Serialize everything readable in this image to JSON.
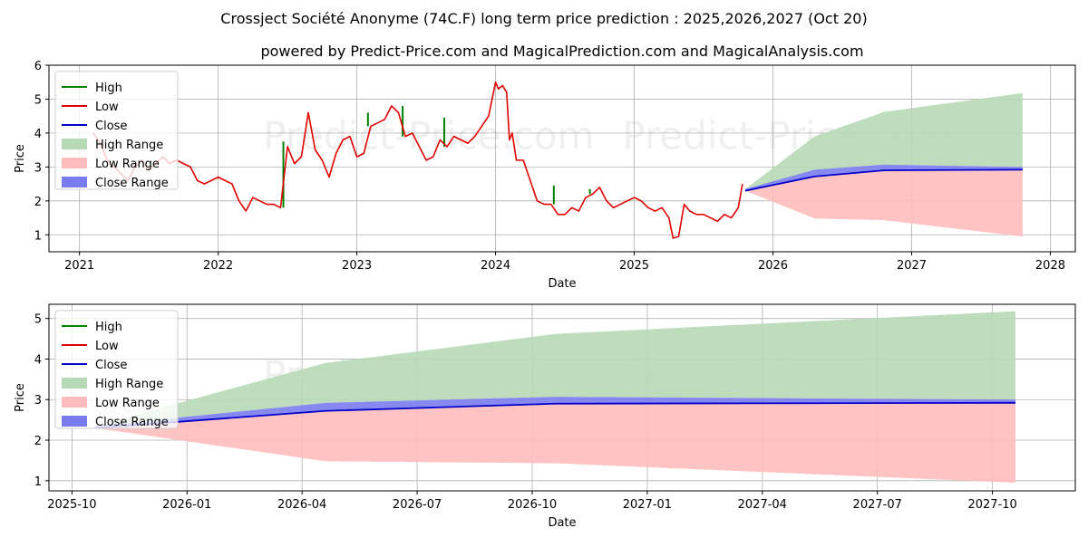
{
  "title": "Crossject Société Anonyme (74C.F) long term price prediction : 2025,2026,2027 (Oct 20)",
  "subtitle": "powered by Predict-Price.com and MagicalPrediction.com and MagicalAnalysis.com",
  "watermark": "Predict-Price.com",
  "colors": {
    "high": "#008000",
    "low": "#e00000",
    "close": "#0000cc",
    "high_range": "#b6d9b6",
    "low_range": "#ffbcbc",
    "close_range": "#7b7bf0"
  },
  "chart_data": [
    {
      "type": "line",
      "id": "top",
      "xlabel": "Date",
      "ylabel": "Price",
      "xlim": [
        2020.78,
        2028.18
      ],
      "ylim": [
        0.5,
        6.0
      ],
      "grid": true,
      "legend_position": "upper-left",
      "xticks": [
        {
          "v": 2021.0,
          "label": "2021"
        },
        {
          "v": 2022.0,
          "label": "2022"
        },
        {
          "v": 2023.0,
          "label": "2023"
        },
        {
          "v": 2024.0,
          "label": "2024"
        },
        {
          "v": 2025.0,
          "label": "2025"
        },
        {
          "v": 2026.0,
          "label": "2026"
        },
        {
          "v": 2027.0,
          "label": "2027"
        },
        {
          "v": 2028.0,
          "label": "2028"
        }
      ],
      "yticks": [
        {
          "v": 1,
          "label": "1"
        },
        {
          "v": 2,
          "label": "2"
        },
        {
          "v": 3,
          "label": "3"
        },
        {
          "v": 4,
          "label": "4"
        },
        {
          "v": 5,
          "label": "5"
        },
        {
          "v": 6,
          "label": "6"
        }
      ],
      "legend": [
        "High",
        "Low",
        "Close",
        "High Range",
        "Low Range",
        "Close Range"
      ],
      "history": {
        "name": "Low",
        "x": [
          2021.1,
          2021.15,
          2021.2,
          2021.25,
          2021.3,
          2021.35,
          2021.4,
          2021.45,
          2021.5,
          2021.55,
          2021.6,
          2021.65,
          2021.7,
          2021.75,
          2021.8,
          2021.85,
          2021.9,
          2021.95,
          2022.0,
          2022.05,
          2022.1,
          2022.15,
          2022.2,
          2022.25,
          2022.3,
          2022.35,
          2022.4,
          2022.45,
          2022.5,
          2022.55,
          2022.6,
          2022.65,
          2022.7,
          2022.75,
          2022.8,
          2022.85,
          2022.9,
          2022.95,
          2023.0,
          2023.05,
          2023.1,
          2023.15,
          2023.2,
          2023.25,
          2023.3,
          2023.35,
          2023.4,
          2023.45,
          2023.5,
          2023.55,
          2023.6,
          2023.65,
          2023.7,
          2023.75,
          2023.8,
          2023.85,
          2023.9,
          2023.95,
          2024.0,
          2024.02,
          2024.05,
          2024.08,
          2024.1,
          2024.12,
          2024.15,
          2024.2,
          2024.25,
          2024.3,
          2024.35,
          2024.4,
          2024.45,
          2024.5,
          2024.55,
          2024.6,
          2024.65,
          2024.7,
          2024.75,
          2024.8,
          2024.85,
          2024.9,
          2024.95,
          2025.0,
          2025.05,
          2025.1,
          2025.15,
          2025.2,
          2025.25,
          2025.28,
          2025.32,
          2025.36,
          2025.4,
          2025.45,
          2025.5,
          2025.55,
          2025.6,
          2025.65,
          2025.7,
          2025.75,
          2025.78
        ],
        "values": [
          4.0,
          3.7,
          3.2,
          3.0,
          2.8,
          2.6,
          3.0,
          3.2,
          2.9,
          3.1,
          3.3,
          3.1,
          3.2,
          3.1,
          3.0,
          2.6,
          2.5,
          2.6,
          2.7,
          2.6,
          2.5,
          2.0,
          1.7,
          2.1,
          2.0,
          1.9,
          1.9,
          1.8,
          3.6,
          3.1,
          3.3,
          4.6,
          3.5,
          3.2,
          2.7,
          3.4,
          3.8,
          3.9,
          3.3,
          3.4,
          4.2,
          4.3,
          4.4,
          4.8,
          4.6,
          3.9,
          4.0,
          3.6,
          3.2,
          3.3,
          3.8,
          3.6,
          3.9,
          3.8,
          3.7,
          3.9,
          4.2,
          4.5,
          5.5,
          5.3,
          5.4,
          5.2,
          3.8,
          4.0,
          3.2,
          3.2,
          2.6,
          2.0,
          1.9,
          1.9,
          1.6,
          1.6,
          1.8,
          1.7,
          2.1,
          2.2,
          2.4,
          2.0,
          1.8,
          1.9,
          2.0,
          2.1,
          2.0,
          1.8,
          1.7,
          1.8,
          1.5,
          0.9,
          0.95,
          1.9,
          1.7,
          1.6,
          1.6,
          1.5,
          1.4,
          1.6,
          1.5,
          1.8,
          2.5
        ]
      },
      "high_spikes": [
        {
          "x": 2022.47,
          "value": 3.75
        },
        {
          "x": 2023.08,
          "value": 4.6
        },
        {
          "x": 2023.33,
          "value": 4.8
        },
        {
          "x": 2023.63,
          "value": 4.45
        },
        {
          "x": 2024.42,
          "value": 2.45
        },
        {
          "x": 2024.68,
          "value": 2.35
        }
      ],
      "forecast": {
        "x": [
          2025.8,
          2026.3,
          2026.8,
          2027.8
        ],
        "close": [
          2.3,
          2.72,
          2.9,
          2.92
        ],
        "close_range_upper": [
          2.35,
          2.92,
          3.07,
          3.0
        ],
        "close_range_lower": [
          2.3,
          2.72,
          2.9,
          2.92
        ],
        "high_range_upper": [
          2.35,
          3.9,
          4.62,
          5.18
        ],
        "high_range_lower": [
          2.35,
          2.92,
          3.07,
          3.0
        ],
        "low_range_upper": [
          2.3,
          2.72,
          2.9,
          2.92
        ],
        "low_range_lower": [
          2.3,
          1.48,
          1.43,
          0.95
        ]
      }
    },
    {
      "type": "line",
      "id": "bottom",
      "xlabel": "Date",
      "ylabel": "Price",
      "xlim": [
        2025.7,
        2027.93
      ],
      "ylim": [
        0.75,
        5.35
      ],
      "grid": true,
      "legend_position": "upper-left",
      "xticks": [
        {
          "v": 2025.75,
          "label": "2025-10"
        },
        {
          "v": 2026.0,
          "label": "2026-01"
        },
        {
          "v": 2026.25,
          "label": "2026-04"
        },
        {
          "v": 2026.5,
          "label": "2026-07"
        },
        {
          "v": 2026.75,
          "label": "2026-10"
        },
        {
          "v": 2027.0,
          "label": "2027-01"
        },
        {
          "v": 2027.25,
          "label": "2027-04"
        },
        {
          "v": 2027.5,
          "label": "2027-07"
        },
        {
          "v": 2027.75,
          "label": "2027-10"
        }
      ],
      "yticks": [
        {
          "v": 1,
          "label": "1"
        },
        {
          "v": 2,
          "label": "2"
        },
        {
          "v": 3,
          "label": "3"
        },
        {
          "v": 4,
          "label": "4"
        },
        {
          "v": 5,
          "label": "5"
        }
      ],
      "legend": [
        "High",
        "Low",
        "Close",
        "High Range",
        "Low Range",
        "Close Range"
      ],
      "forecast": {
        "x": [
          2025.8,
          2026.3,
          2026.8,
          2027.8
        ],
        "close": [
          2.3,
          2.72,
          2.9,
          2.92
        ],
        "close_range_upper": [
          2.35,
          2.92,
          3.07,
          3.0
        ],
        "close_range_lower": [
          2.3,
          2.72,
          2.9,
          2.92
        ],
        "high_range_upper": [
          2.35,
          3.9,
          4.62,
          5.18
        ],
        "high_range_lower": [
          2.35,
          2.92,
          3.07,
          3.0
        ],
        "low_range_upper": [
          2.3,
          2.72,
          2.9,
          2.92
        ],
        "low_range_lower": [
          2.3,
          1.48,
          1.43,
          0.95
        ]
      }
    }
  ]
}
